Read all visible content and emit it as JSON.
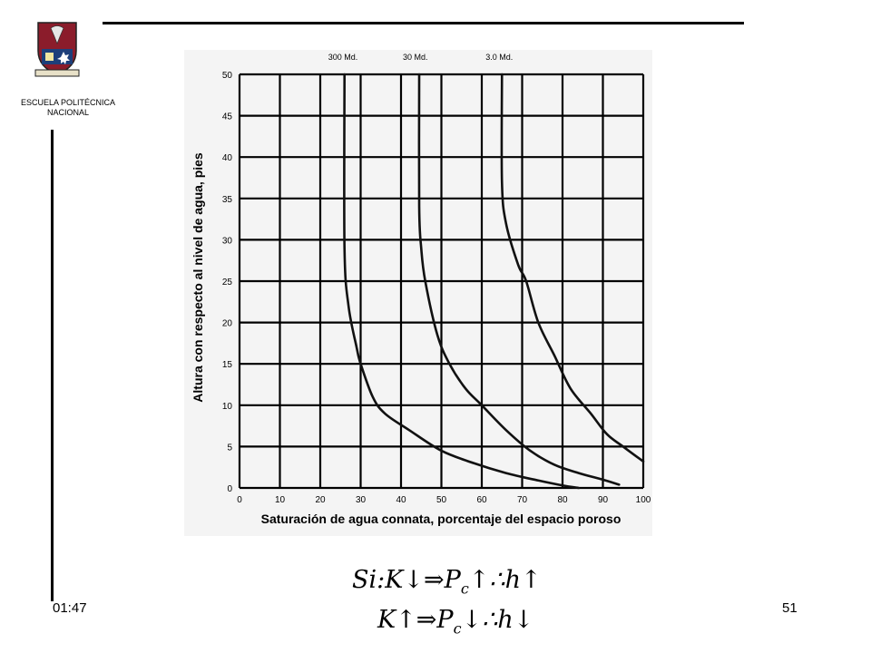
{
  "header": {
    "institution": "ESCUELA POLITÉCNICA NACIONAL"
  },
  "footer": {
    "clock": "01:47",
    "page_number": "51"
  },
  "formulas": [
    {
      "p1": "Si:K",
      "a1": "↓",
      "imp": "⇒",
      "p2": "P",
      "sub": "c",
      "a2": "↑",
      "th": "∴",
      "p3": "h",
      "a3": "↑"
    },
    {
      "p1": "K",
      "a1": "↑",
      "imp": "⇒",
      "p2": "P",
      "sub": "c",
      "a2": "↓",
      "th": "∴",
      "p3": "h",
      "a3": "↓"
    }
  ],
  "chart_data": {
    "type": "line",
    "xlabel": "Saturación de agua connata, porcentaje del espacio poroso",
    "ylabel": "Altura con respecto al nivel de agua, pies",
    "xlim": [
      0,
      100
    ],
    "ylim": [
      0,
      50
    ],
    "x_ticks": [
      0,
      10,
      20,
      30,
      40,
      50,
      60,
      70,
      80,
      90,
      100
    ],
    "y_ticks": [
      0,
      5,
      10,
      15,
      20,
      25,
      30,
      35,
      40,
      45,
      50
    ],
    "grid": true,
    "series": [
      {
        "name": "300 Md.",
        "points": [
          [
            26,
            50
          ],
          [
            26,
            29
          ],
          [
            27,
            22
          ],
          [
            29,
            17
          ],
          [
            30,
            15
          ],
          [
            33,
            11
          ],
          [
            36,
            9
          ],
          [
            42,
            7
          ],
          [
            50,
            4.5
          ],
          [
            58,
            3
          ],
          [
            66,
            1.8
          ],
          [
            74,
            0.9
          ],
          [
            80,
            0.3
          ],
          [
            84,
            0
          ]
        ]
      },
      {
        "name": "30 Md.",
        "points": [
          [
            44.5,
            50
          ],
          [
            44.5,
            34
          ],
          [
            45,
            29
          ],
          [
            46,
            25
          ],
          [
            49,
            18.5
          ],
          [
            52,
            15
          ],
          [
            56,
            12
          ],
          [
            60,
            10
          ],
          [
            66,
            7
          ],
          [
            72,
            4.5
          ],
          [
            78,
            2.8
          ],
          [
            84,
            1.8
          ],
          [
            90,
            1
          ],
          [
            94,
            0.4
          ]
        ]
      },
      {
        "name": "3.0 Md.",
        "points": [
          [
            65,
            50
          ],
          [
            65,
            37
          ],
          [
            66,
            32
          ],
          [
            69,
            27
          ],
          [
            71,
            25
          ],
          [
            74,
            20
          ],
          [
            78,
            16
          ],
          [
            82,
            12
          ],
          [
            87,
            9
          ],
          [
            91,
            6.5
          ],
          [
            95,
            5
          ],
          [
            100,
            3.2
          ]
        ]
      }
    ]
  }
}
